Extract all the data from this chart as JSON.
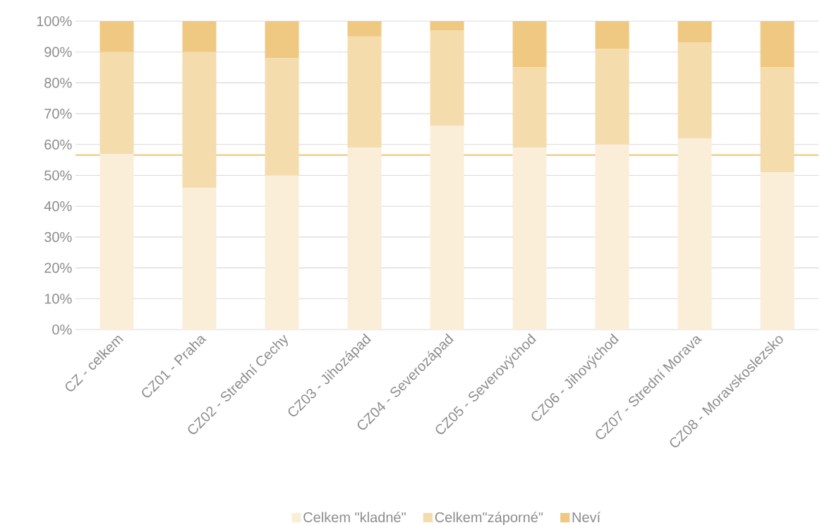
{
  "chart_data": {
    "type": "bar",
    "stacked": true,
    "categories": [
      "CZ - celkem",
      "CZ01 - Praha",
      "CZ02 - Strední Cechy",
      "CZ03 - Jihozápad",
      "CZ04 - Severozápad",
      "CZ05 - Severovýchod",
      "CZ06 - Jihovýchod",
      "CZ07 - Strední Morava",
      "CZ08 - Moravskoslezsko"
    ],
    "series": [
      {
        "name": "Celkem \"kladné\"",
        "color": "#faeed9",
        "values": [
          57,
          46,
          50,
          59,
          66,
          59,
          60,
          62,
          51
        ]
      },
      {
        "name": "Celkem\"záporné\"",
        "color": "#f5dcad",
        "values": [
          33,
          44,
          38,
          36,
          31,
          26,
          31,
          31,
          34
        ]
      },
      {
        "name": "Neví",
        "color": "#efc881",
        "values": [
          10,
          10,
          12,
          5,
          3,
          15,
          9,
          7,
          15
        ]
      }
    ],
    "ylim": [
      0,
      100
    ],
    "yticks": [
      {
        "value": 0,
        "label": "0%"
      },
      {
        "value": 10,
        "label": "10%"
      },
      {
        "value": 20,
        "label": "20%"
      },
      {
        "value": 30,
        "label": "30%"
      },
      {
        "value": 40,
        "label": "40%"
      },
      {
        "value": 50,
        "label": "50%"
      },
      {
        "value": 60,
        "label": "60%"
      },
      {
        "value": 70,
        "label": "70%"
      },
      {
        "value": 80,
        "label": "80%"
      },
      {
        "value": 90,
        "label": "90%"
      },
      {
        "value": 100,
        "label": "100%"
      }
    ],
    "ref_lines": [
      {
        "axis": "y",
        "value": 56.6,
        "color": "#efc56f"
      }
    ],
    "grid": "y",
    "legend": "bottom"
  }
}
